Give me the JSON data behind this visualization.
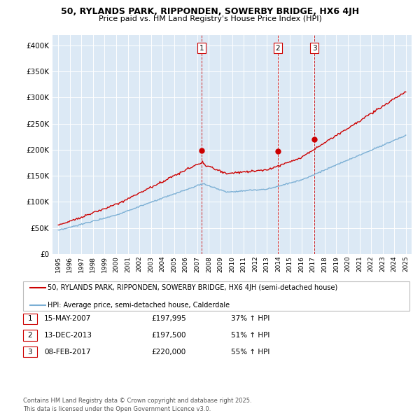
{
  "title1": "50, RYLANDS PARK, RIPPONDEN, SOWERBY BRIDGE, HX6 4JH",
  "title2": "Price paid vs. HM Land Registry's House Price Index (HPI)",
  "legend_red": "50, RYLANDS PARK, RIPPONDEN, SOWERBY BRIDGE, HX6 4JH (semi-detached house)",
  "legend_blue": "HPI: Average price, semi-detached house, Calderdale",
  "footnote": "Contains HM Land Registry data © Crown copyright and database right 2025.\nThis data is licensed under the Open Government Licence v3.0.",
  "sale_points": [
    {
      "label": "1",
      "date": "15-MAY-2007",
      "price": 197995,
      "hpi_pct": "37% ↑ HPI",
      "x_year": 2007.37
    },
    {
      "label": "2",
      "date": "13-DEC-2013",
      "price": 197500,
      "hpi_pct": "51% ↑ HPI",
      "x_year": 2013.95
    },
    {
      "label": "3",
      "date": "08-FEB-2017",
      "price": 220000,
      "hpi_pct": "55% ↑ HPI",
      "x_year": 2017.1
    }
  ],
  "ylim": [
    0,
    420000
  ],
  "xlim": [
    1994.5,
    2025.5
  ],
  "yticks": [
    0,
    50000,
    100000,
    150000,
    200000,
    250000,
    300000,
    350000,
    400000
  ],
  "plot_bg": "#dce9f5",
  "red_color": "#cc0000",
  "blue_color": "#7bafd4",
  "grid_color": "#ffffff"
}
